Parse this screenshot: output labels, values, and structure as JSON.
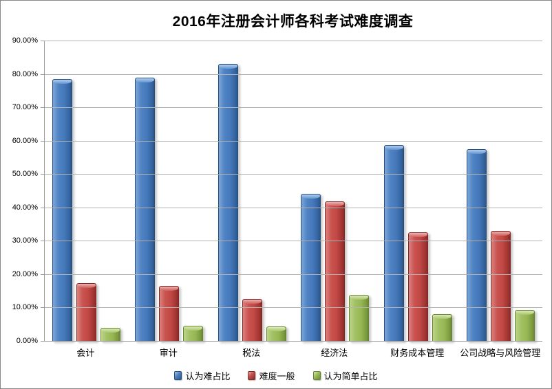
{
  "chart_data": {
    "type": "bar",
    "title": "2016年注册会计师各科考试难度调查",
    "categories": [
      "会计",
      "审计",
      "税法",
      "经济法",
      "财务成本管理",
      "公司战略与风险管理"
    ],
    "series": [
      {
        "name": "认为难占比",
        "color": "#4f81bd",
        "values": [
          78.6,
          79.0,
          83.2,
          44.2,
          58.9,
          57.7
        ]
      },
      {
        "name": "难度一般",
        "color": "#c0504d",
        "values": [
          17.6,
          16.6,
          12.7,
          42.0,
          32.8,
          33.1
        ]
      },
      {
        "name": "认为简单占比",
        "color": "#9bbb59",
        "values": [
          4.1,
          4.8,
          4.5,
          14.1,
          8.3,
          9.5
        ]
      }
    ],
    "xlabel": "",
    "ylabel": "",
    "ylim": [
      0,
      90
    ],
    "ytick_step": 10,
    "ytick_labels": [
      "0.00%",
      "10.00%",
      "20.00%",
      "30.00%",
      "40.00%",
      "50.00%",
      "60.00%",
      "70.00%",
      "80.00%",
      "90.00%"
    ],
    "grid": true,
    "legend_position": "bottom",
    "gridline_color": "#b2b2b2",
    "axis_color": "#9c9c9c",
    "background_color": "#ffffff"
  }
}
